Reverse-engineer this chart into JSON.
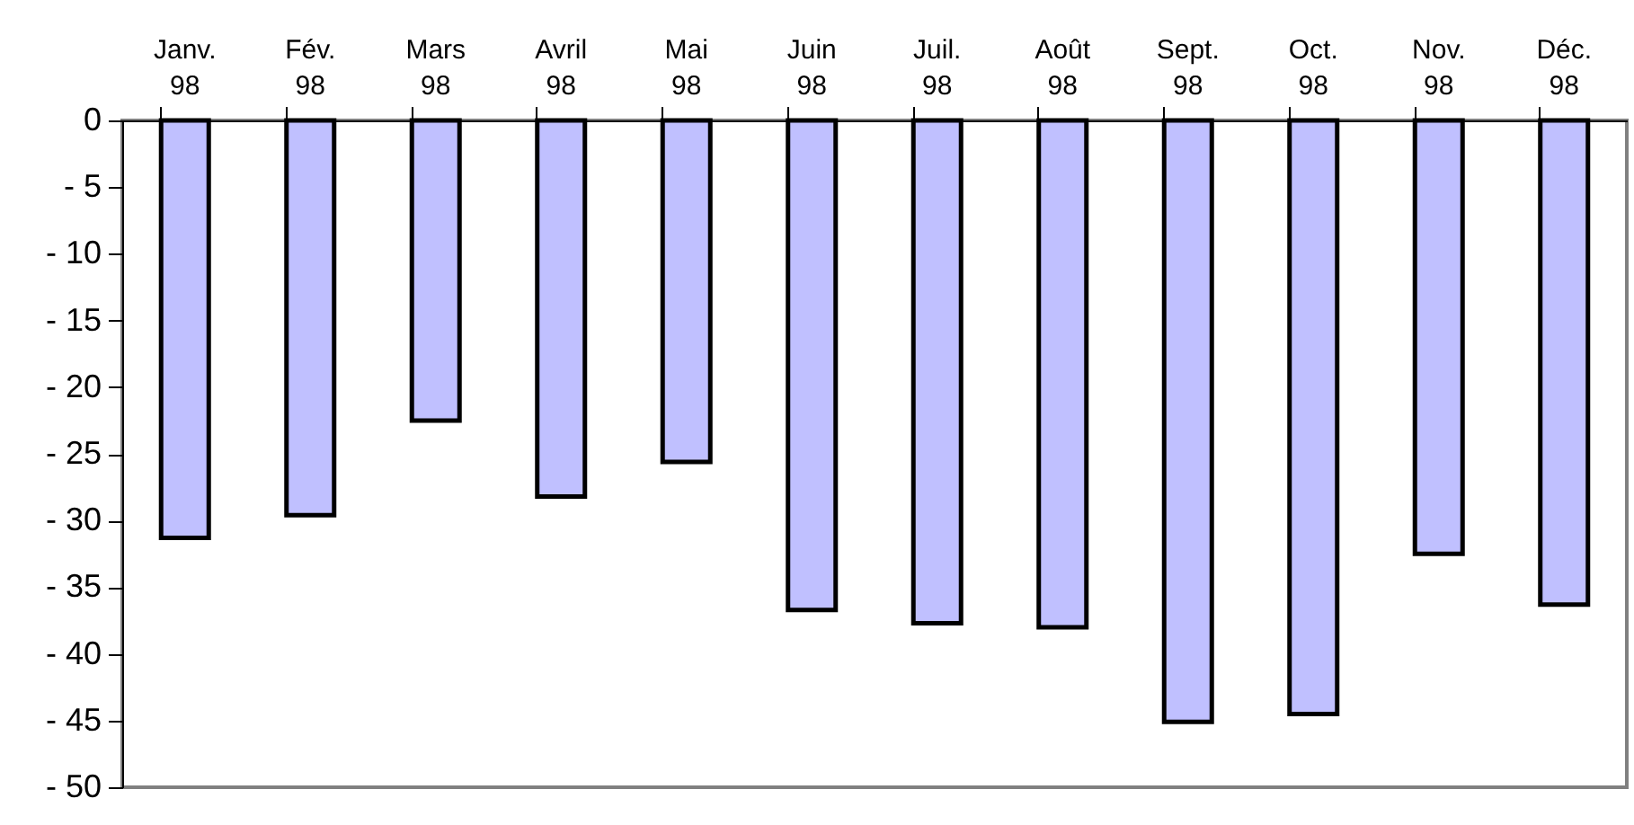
{
  "chart_data": {
    "type": "bar",
    "categories": [
      "Janv. 98",
      "Fév. 98",
      "Mars 98",
      "Avril 98",
      "Mai 98",
      "Juin 98",
      "Juil. 98",
      "Août 98",
      "Sept. 98",
      "Oct. 98",
      "Nov. 98",
      "Déc. 98"
    ],
    "values": [
      -31.3,
      -29.6,
      -22.5,
      -28.2,
      -25.6,
      -36.7,
      -37.7,
      -38.0,
      -45.1,
      -44.5,
      -32.5,
      -36.3
    ],
    "color": "#c0c0ff",
    "ylim": [
      -50,
      0
    ],
    "yticks": [
      {
        "value": -50,
        "label": "- 50"
      },
      {
        "value": -45,
        "label": "- 45"
      },
      {
        "value": -40,
        "label": "- 40"
      },
      {
        "value": -35,
        "label": "- 35"
      },
      {
        "value": -30,
        "label": "- 30"
      },
      {
        "value": -25,
        "label": "- 25"
      },
      {
        "value": -20,
        "label": "- 20"
      },
      {
        "value": -15,
        "label": "- 15"
      },
      {
        "value": -10,
        "label": "- 10"
      },
      {
        "value": -5,
        "label": "- 5"
      },
      0
    ]
  }
}
